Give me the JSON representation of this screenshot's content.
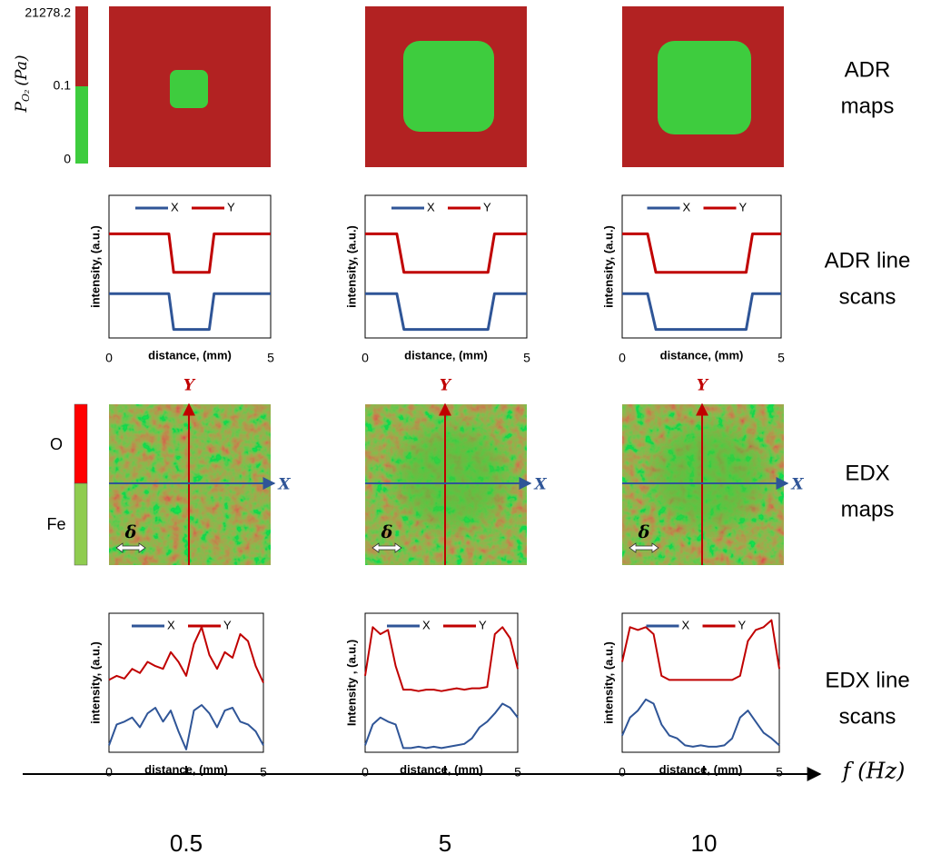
{
  "adr_colorbar": {
    "label": {
      "symbol": "P",
      "subscript": "O₂",
      "unit": "(Pa)"
    },
    "ticks": [
      21278.2,
      0.1,
      0
    ],
    "colors": [
      "#b22222",
      "#3ecc3e"
    ]
  },
  "edx_colorbar": {
    "labels": [
      "O",
      "Fe"
    ],
    "colors": [
      "#ff0000",
      "#8fcc50"
    ]
  },
  "row_labels": [
    [
      "ADR",
      "maps"
    ],
    [
      "ADR line",
      "scans"
    ],
    [
      "EDX",
      "maps"
    ],
    [
      "EDX line",
      "scans"
    ]
  ],
  "edx_map_axes": {
    "x": "X",
    "y": "Y",
    "scale": "δ"
  },
  "frequency_axis": {
    "label": "f (Hz)",
    "values": [
      0.5,
      5,
      10
    ]
  },
  "chart_data": [
    {
      "type": "line",
      "xlabel": "distance, (mm)",
      "ylabel": "intensity, (a.u.)",
      "x": [
        0,
        1.85,
        2.0,
        3.1,
        3.25,
        5
      ],
      "xlim": [
        0,
        5
      ],
      "xticks": [
        0,
        5
      ],
      "ylim": [
        0,
        1
      ],
      "series": [
        {
          "name": "X",
          "color": "#2f5597",
          "values": [
            0.31,
            0.31,
            0.06,
            0.06,
            0.31,
            0.31
          ]
        },
        {
          "name": "Y",
          "color": "#c00000",
          "values": [
            0.73,
            0.73,
            0.46,
            0.46,
            0.73,
            0.73
          ]
        }
      ]
    },
    {
      "type": "line",
      "xlabel": "distance, (mm)",
      "ylabel": "intensity, (a.u.)",
      "x": [
        0,
        0.98,
        1.2,
        3.8,
        4.0,
        5
      ],
      "xlim": [
        0,
        5
      ],
      "xticks": [
        0,
        5
      ],
      "ylim": [
        0,
        1
      ],
      "series": [
        {
          "name": "X",
          "color": "#2f5597",
          "values": [
            0.31,
            0.31,
            0.06,
            0.06,
            0.31,
            0.31
          ]
        },
        {
          "name": "Y",
          "color": "#c00000",
          "values": [
            0.73,
            0.73,
            0.46,
            0.46,
            0.73,
            0.73
          ]
        }
      ]
    },
    {
      "type": "line",
      "xlabel": "distance, (mm)",
      "ylabel": "intensity, (a.u.)",
      "x": [
        0,
        0.8,
        1.06,
        3.9,
        4.1,
        5
      ],
      "xlim": [
        0,
        5
      ],
      "xticks": [
        0,
        5
      ],
      "ylim": [
        0,
        1
      ],
      "series": [
        {
          "name": "X",
          "color": "#2f5597",
          "values": [
            0.31,
            0.31,
            0.06,
            0.06,
            0.31,
            0.31
          ]
        },
        {
          "name": "Y",
          "color": "#c00000",
          "values": [
            0.73,
            0.73,
            0.46,
            0.46,
            0.73,
            0.73
          ]
        }
      ]
    },
    {
      "type": "line",
      "xlabel": "distance, (mm)",
      "ylabel": "intensity, (a.u.)",
      "x": [
        0,
        0.25,
        0.5,
        0.75,
        1,
        1.25,
        1.5,
        1.75,
        2,
        2.25,
        2.5,
        2.75,
        3,
        3.25,
        3.5,
        3.75,
        4,
        4.25,
        4.5,
        4.75,
        5
      ],
      "xlim": [
        0,
        5
      ],
      "xticks": [
        0,
        5
      ],
      "ylim": [
        0,
        1
      ],
      "series": [
        {
          "name": "X",
          "color": "#2f5597",
          "values": [
            0.05,
            0.2,
            0.22,
            0.25,
            0.18,
            0.28,
            0.32,
            0.22,
            0.3,
            0.15,
            0.02,
            0.3,
            0.34,
            0.28,
            0.18,
            0.3,
            0.32,
            0.22,
            0.2,
            0.15,
            0.05
          ]
        },
        {
          "name": "Y",
          "color": "#c00000",
          "values": [
            0.52,
            0.55,
            0.53,
            0.6,
            0.57,
            0.65,
            0.62,
            0.6,
            0.72,
            0.65,
            0.55,
            0.78,
            0.9,
            0.7,
            0.6,
            0.72,
            0.68,
            0.85,
            0.8,
            0.62,
            0.5
          ]
        }
      ]
    },
    {
      "type": "line",
      "xlabel": "distance, (mm)",
      "ylabel": "Intensity , (a.u.)",
      "x": [
        0,
        0.25,
        0.5,
        0.75,
        1,
        1.25,
        1.5,
        1.75,
        2,
        2.25,
        2.5,
        2.75,
        3,
        3.25,
        3.5,
        3.75,
        4,
        4.25,
        4.5,
        4.75,
        5
      ],
      "xlim": [
        0,
        5
      ],
      "xticks": [
        0,
        5
      ],
      "ylim": [
        0,
        1
      ],
      "series": [
        {
          "name": "X",
          "color": "#2f5597",
          "values": [
            0.05,
            0.2,
            0.25,
            0.22,
            0.2,
            0.03,
            0.03,
            0.04,
            0.03,
            0.04,
            0.03,
            0.04,
            0.05,
            0.06,
            0.1,
            0.18,
            0.22,
            0.28,
            0.35,
            0.32,
            0.25
          ]
        },
        {
          "name": "Y",
          "color": "#c00000",
          "values": [
            0.55,
            0.9,
            0.85,
            0.88,
            0.62,
            0.45,
            0.45,
            0.44,
            0.45,
            0.45,
            0.44,
            0.45,
            0.46,
            0.45,
            0.46,
            0.46,
            0.47,
            0.85,
            0.9,
            0.82,
            0.6
          ]
        }
      ]
    },
    {
      "type": "line",
      "xlabel": "distance, (mm)",
      "ylabel": "intensity, (a.u.)",
      "x": [
        0,
        0.25,
        0.5,
        0.75,
        1,
        1.25,
        1.5,
        1.75,
        2,
        2.25,
        2.5,
        2.75,
        3,
        3.25,
        3.5,
        3.75,
        4,
        4.25,
        4.5,
        4.75,
        5
      ],
      "xlim": [
        0,
        5
      ],
      "xticks": [
        0,
        5
      ],
      "ylim": [
        0,
        1
      ],
      "series": [
        {
          "name": "X",
          "color": "#2f5597",
          "values": [
            0.12,
            0.25,
            0.3,
            0.38,
            0.35,
            0.2,
            0.12,
            0.1,
            0.05,
            0.04,
            0.05,
            0.04,
            0.04,
            0.05,
            0.1,
            0.25,
            0.3,
            0.22,
            0.14,
            0.1,
            0.05
          ]
        },
        {
          "name": "Y",
          "color": "#c00000",
          "values": [
            0.65,
            0.9,
            0.88,
            0.9,
            0.85,
            0.55,
            0.52,
            0.52,
            0.52,
            0.52,
            0.52,
            0.52,
            0.52,
            0.52,
            0.52,
            0.55,
            0.8,
            0.88,
            0.9,
            0.95,
            0.6
          ]
        }
      ]
    }
  ]
}
